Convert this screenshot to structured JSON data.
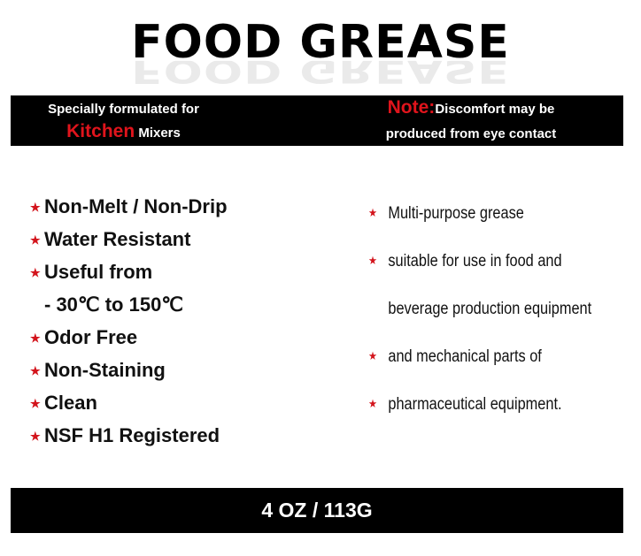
{
  "title": "FOOD GREASE",
  "banner": {
    "left_line1": "Specially formulated for",
    "left_highlight": "Kitchen",
    "left_line2": "Mixers",
    "note_label": "Note:",
    "note_line1": "Discomfort may be",
    "note_line2": "produced from eye contact"
  },
  "features": [
    "Non-Melt / Non-Drip",
    "Water Resistant",
    "Useful from",
    "- 30℃ to 150℃",
    "Odor Free",
    "Non-Staining",
    "Clean",
    "NSF H1 Registered"
  ],
  "description": [
    "Multi-purpose grease",
    "suitable for use in food and",
    "beverage production equipment",
    "and mechanical parts of",
    "pharmaceutical equipment."
  ],
  "size": "4 OZ / 113G",
  "colors": {
    "accent": "#e0141c",
    "bar": "#000000"
  }
}
